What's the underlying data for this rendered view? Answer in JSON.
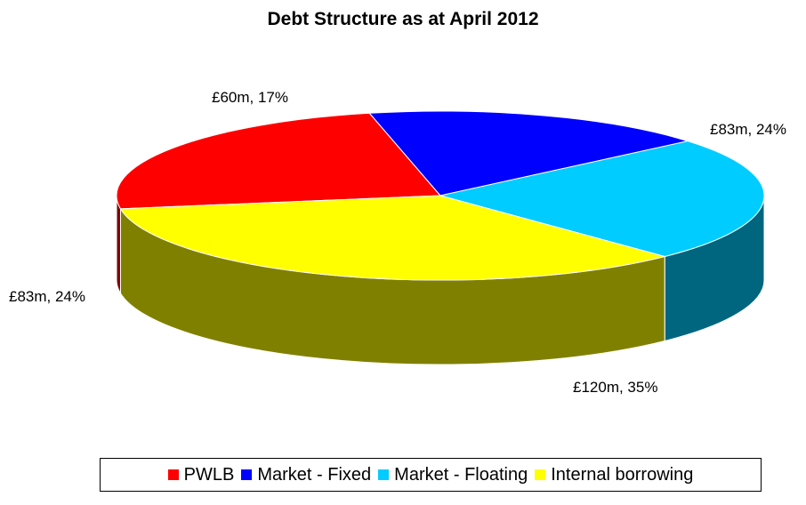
{
  "chart_data": {
    "type": "pie",
    "title": "Debt Structure as at April 2012",
    "legend_position": "bottom",
    "slices": [
      {
        "name": "PWLB",
        "value": 83,
        "label": "£83m, 24%",
        "color": "#ff0000",
        "side_color": "#800000"
      },
      {
        "name": "Market - Fixed",
        "value": 60,
        "label": "£60m, 17%",
        "color": "#0000ff",
        "side_color": "#000080"
      },
      {
        "name": "Market - Floating",
        "value": 83,
        "label": "£83m, 24%",
        "color": "#00ccff",
        "side_color": "#006680"
      },
      {
        "name": "Internal borrowing",
        "value": 120,
        "label": "£120m, 35%",
        "color": "#ffff00",
        "side_color": "#808000"
      }
    ]
  }
}
